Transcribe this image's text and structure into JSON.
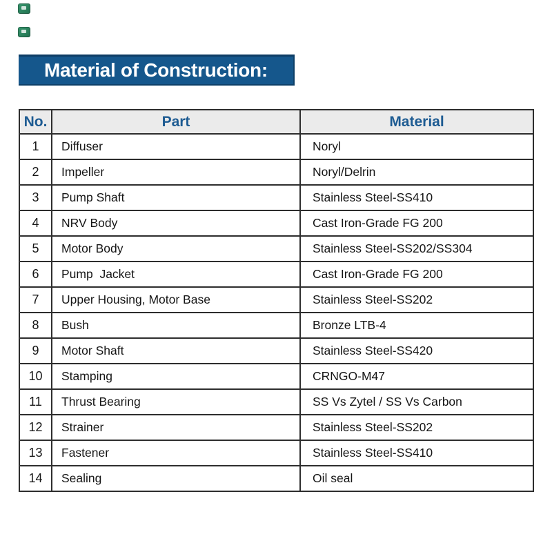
{
  "page": {
    "background": "#ffffff"
  },
  "decorations": {
    "marker_color": "#2d8a63",
    "marker_count": 2
  },
  "title": {
    "text": "Material of Construction:",
    "bg_color": "#15578c",
    "edge_color": "#0d3c64",
    "text_color": "#ffffff"
  },
  "table": {
    "border_color": "#2d2d2d",
    "header": {
      "bg_color": "#ebebeb",
      "text_color": "#1d5b92",
      "columns": [
        "No.",
        "Part",
        "Material"
      ]
    },
    "rows": [
      {
        "no": "1",
        "part": "Diffuser",
        "material": "Noryl"
      },
      {
        "no": "2",
        "part": "Impeller",
        "material": "Noryl/Delrin"
      },
      {
        "no": "3",
        "part": "Pump Shaft",
        "material": "Stainless Steel-SS410"
      },
      {
        "no": "4",
        "part": "NRV Body",
        "material": "Cast Iron-Grade FG 200"
      },
      {
        "no": "5",
        "part": "Motor Body",
        "material": "Stainless Steel-SS202/SS304"
      },
      {
        "no": "6",
        "part": "Pump  Jacket",
        "material": "Cast Iron-Grade FG 200"
      },
      {
        "no": "7",
        "part": "Upper Housing, Motor Base",
        "material": "Stainless Steel-SS202"
      },
      {
        "no": "8",
        "part": "Bush",
        "material": "Bronze LTB-4"
      },
      {
        "no": "9",
        "part": "Motor Shaft",
        "material": "Stainless Steel-SS420"
      },
      {
        "no": "10",
        "part": "Stamping",
        "material": "CRNGO-M47"
      },
      {
        "no": "11",
        "part": "Thrust Bearing",
        "material": "SS Vs Zytel / SS Vs Carbon"
      },
      {
        "no": "12",
        "part": "Strainer",
        "material": "Stainless Steel-SS202"
      },
      {
        "no": "13",
        "part": "Fastener",
        "material": "Stainless Steel-SS410"
      },
      {
        "no": "14",
        "part": "Sealing",
        "material": "Oil seal"
      }
    ]
  }
}
